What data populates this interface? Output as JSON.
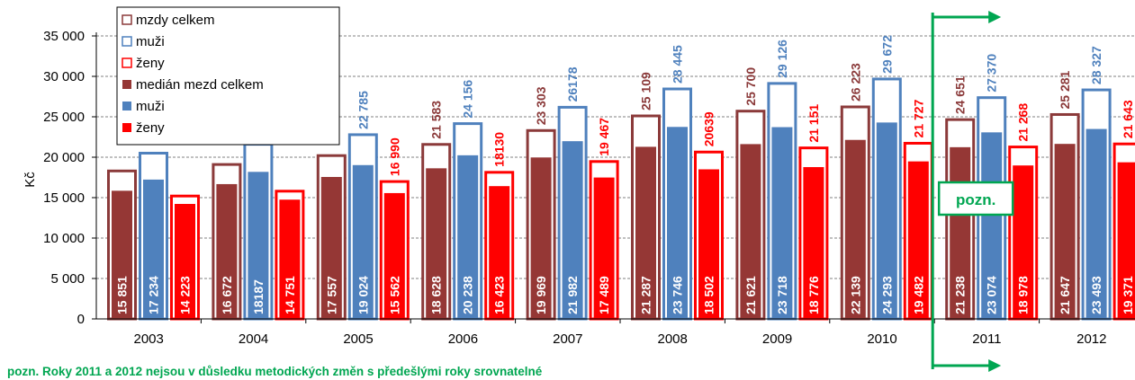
{
  "chart_data": {
    "type": "bar",
    "ylabel": "Kč",
    "ylim": [
      0,
      35000
    ],
    "yticks": [
      0,
      5000,
      10000,
      15000,
      20000,
      25000,
      30000,
      35000
    ],
    "ytick_labels": [
      "0",
      "5 000",
      "10 000",
      "15 000",
      "20 000",
      "25 000",
      "30 000",
      "35 000"
    ],
    "categories": [
      "2003",
      "2004",
      "2005",
      "2006",
      "2007",
      "2008",
      "2009",
      "2010",
      "2011",
      "2012"
    ],
    "grid": true,
    "legend_position": "top-left",
    "series": [
      {
        "name": "mzdy celkem",
        "style": "outline",
        "color": "#8b3a3a",
        "group": 0,
        "values": [
          18300,
          19100,
          20200,
          21583,
          23303,
          25109,
          25700,
          26223,
          24651,
          25281
        ],
        "labels": [
          null,
          null,
          null,
          "21 583",
          "23 303",
          "25 109",
          "25 700",
          "26 223",
          "24 651",
          "25 281"
        ]
      },
      {
        "name": "muži",
        "style": "outline",
        "color": "#4f81bd",
        "group": 1,
        "values": [
          20500,
          21600,
          22785,
          24156,
          26178,
          28445,
          29126,
          29672,
          27370,
          28327
        ],
        "labels": [
          null,
          null,
          "22 785",
          "24 156",
          "26178",
          "28 445",
          "29 126",
          "29 672",
          "27 370",
          "28 327"
        ]
      },
      {
        "name": "ženy",
        "style": "outline",
        "color": "#ff0000",
        "group": 2,
        "values": [
          15200,
          15800,
          16990,
          18130,
          19467,
          20639,
          21151,
          21727,
          21268,
          21643
        ],
        "labels": [
          null,
          null,
          "16 990",
          "18130",
          "19 467",
          "20639",
          "21 151",
          "21 727",
          "21 268",
          "21 643"
        ]
      },
      {
        "name": "medián mezd celkem",
        "style": "filled",
        "color": "#953735",
        "group": 0,
        "values": [
          15851,
          16672,
          17557,
          18628,
          19969,
          21287,
          21621,
          22139,
          21238,
          21647
        ],
        "labels": [
          "15 851",
          "16 672",
          "17 557",
          "18 628",
          "19 969",
          "21 287",
          "21 621",
          "22 139",
          "21 238",
          "21 647"
        ]
      },
      {
        "name": "muži",
        "style": "filled",
        "color": "#4f81bd",
        "group": 1,
        "values": [
          17234,
          18187,
          19024,
          20238,
          21982,
          23746,
          23718,
          24293,
          23074,
          23493
        ],
        "labels": [
          "17 234",
          "18187",
          "19 024",
          "20 238",
          "21 982",
          "23 746",
          "23 718",
          "24 293",
          "23 074",
          "23 493"
        ]
      },
      {
        "name": "ženy",
        "style": "filled",
        "color": "#ff0000",
        "group": 2,
        "values": [
          14223,
          14751,
          15562,
          16423,
          17489,
          18502,
          18776,
          19482,
          18978,
          19371
        ],
        "labels": [
          "14 223",
          "14 751",
          "15 562",
          "16 423",
          "17 489",
          "18 502",
          "18 776",
          "19 482",
          "18 978",
          "19 371"
        ]
      }
    ],
    "annotation": {
      "box_label": "pozn.",
      "color": "#00a651"
    },
    "note": "pozn. Roky 2011 a 2012 nejsou  v důsledku metodických změn s předešlými roky srovnatelné"
  }
}
